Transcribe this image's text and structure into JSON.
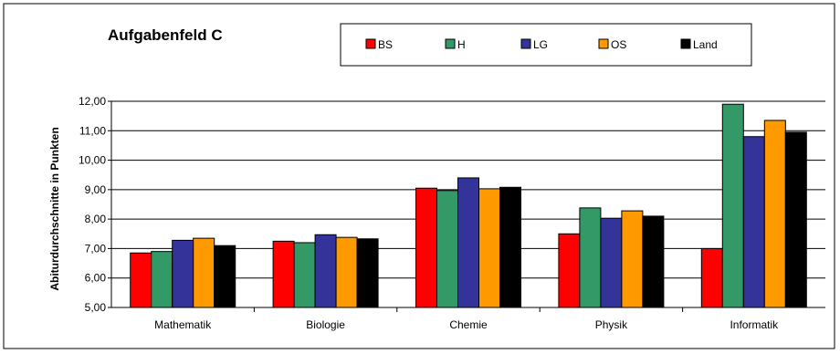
{
  "chart_data": {
    "type": "bar",
    "title": "Aufgabenfeld C",
    "ylabel": "Abiturdurchschnitte in Punkten",
    "xlabel": "",
    "categories": [
      "Mathematik",
      "Biologie",
      "Chemie",
      "Physik",
      "Informatik"
    ],
    "series": [
      {
        "name": "BS",
        "color": "#FF0000",
        "values": [
          6.85,
          7.25,
          9.05,
          7.5,
          7.0
        ]
      },
      {
        "name": "H",
        "color": "#339966",
        "values": [
          6.9,
          7.2,
          8.97,
          8.38,
          11.9
        ]
      },
      {
        "name": "LG",
        "color": "#333399",
        "values": [
          7.28,
          7.47,
          9.4,
          8.03,
          10.8
        ]
      },
      {
        "name": "OS",
        "color": "#FF9900",
        "values": [
          7.35,
          7.38,
          9.03,
          8.28,
          11.35
        ]
      },
      {
        "name": "Land",
        "color": "#000000",
        "values": [
          7.1,
          7.33,
          9.08,
          8.1,
          10.95
        ]
      }
    ],
    "ylim": [
      5.0,
      12.0
    ],
    "yticks": [
      "5,00",
      "6,00",
      "7,00",
      "8,00",
      "9,00",
      "10,00",
      "11,00",
      "12,00"
    ],
    "grid": true,
    "legend_position": "top-right"
  }
}
